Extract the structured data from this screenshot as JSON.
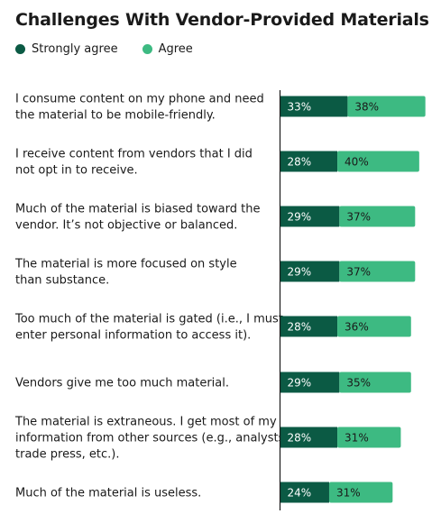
{
  "chart_data": {
    "type": "bar",
    "orientation": "horizontal",
    "stacked": true,
    "title": "Challenges With Vendor-Provided Materials",
    "legend_position": "top-left",
    "value_suffix": "%",
    "xlim": [
      0,
      75
    ],
    "grid": false,
    "categories": [
      [
        "I consume content on my phone and need",
        "the material to be mobile-friendly."
      ],
      [
        "I receive content from vendors that I did",
        "not opt in to receive."
      ],
      [
        "Much of the material is biased toward the",
        "vendor. It’s not objective or balanced."
      ],
      [
        "The material is more focused on style",
        "than substance."
      ],
      [
        "Too much of the material is gated (i.e., I must",
        "enter personal information to access it)."
      ],
      [
        "Vendors give me too much material."
      ],
      [
        "The material is extraneous. I get most of my",
        "information from other sources (e.g., analysts,",
        "trade press, etc.)."
      ],
      [
        "Much of the material is useless."
      ]
    ],
    "series": [
      {
        "name": "Strongly agree",
        "color": "#0b5a44",
        "label_color": "#ffffff",
        "values": [
          33,
          28,
          29,
          29,
          28,
          29,
          28,
          24
        ]
      },
      {
        "name": "Agree",
        "color": "#3dba82",
        "label_color": "#1a1a1a",
        "values": [
          38,
          40,
          37,
          37,
          36,
          35,
          31,
          31
        ]
      }
    ]
  }
}
